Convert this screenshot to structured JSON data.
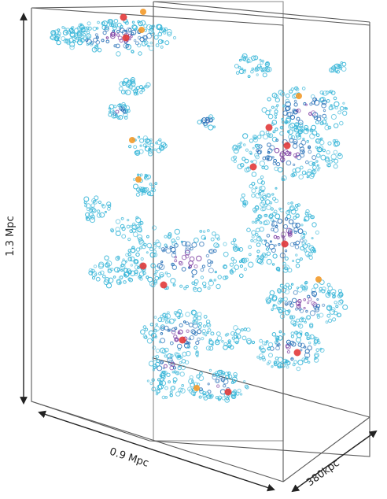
{
  "labels": {
    "height": "1.3 Mpc",
    "width": "0.9 Mpc",
    "depth": "380kpc"
  },
  "colors": {
    "box_edge": "#5a5a5a",
    "arrow": "#222222",
    "low_density": "#39b6d8",
    "mid_density": "#2a72b8",
    "high_density": "#7a3aa0",
    "peak": "#e23a3a",
    "hotspot": "#f39a2a"
  },
  "visual": {
    "type": "3d-density-volume-render",
    "background": "white"
  }
}
